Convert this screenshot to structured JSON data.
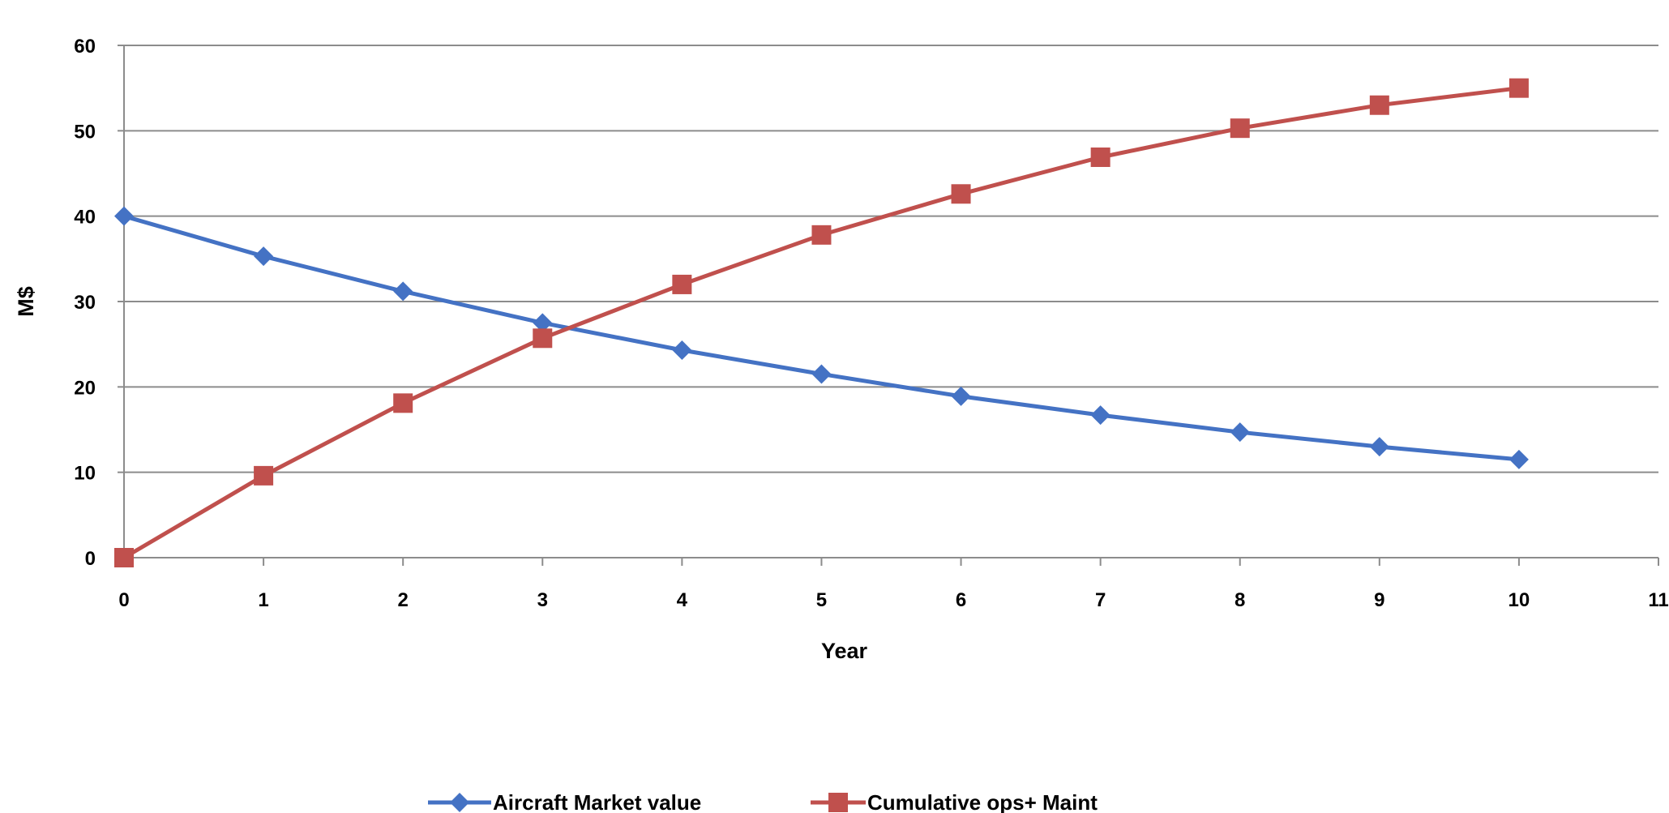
{
  "chart_data": {
    "type": "line",
    "title": "",
    "xlabel": "Year",
    "ylabel": "M$",
    "xlim": [
      0,
      11
    ],
    "ylim": [
      0,
      60
    ],
    "x_ticks": [
      0,
      1,
      2,
      3,
      4,
      5,
      6,
      7,
      8,
      9,
      10,
      11
    ],
    "y_ticks": [
      0,
      10,
      20,
      30,
      40,
      50,
      60
    ],
    "grid": true,
    "legend_position": "bottom",
    "x": [
      0,
      1,
      2,
      3,
      4,
      5,
      6,
      7,
      8,
      9,
      10
    ],
    "series": [
      {
        "name": "Aircraft Market value",
        "color": "#4472C4",
        "marker": "diamond",
        "values": [
          40,
          35.3,
          31.2,
          27.5,
          24.3,
          21.5,
          18.9,
          16.7,
          14.7,
          13.0,
          11.5
        ]
      },
      {
        "name": "Cumulative ops+ Maint",
        "color": "#C0504D",
        "marker": "square",
        "values": [
          0,
          9.6,
          18.1,
          25.7,
          32.0,
          37.8,
          42.6,
          46.9,
          50.3,
          53.0,
          55.0
        ]
      }
    ]
  }
}
